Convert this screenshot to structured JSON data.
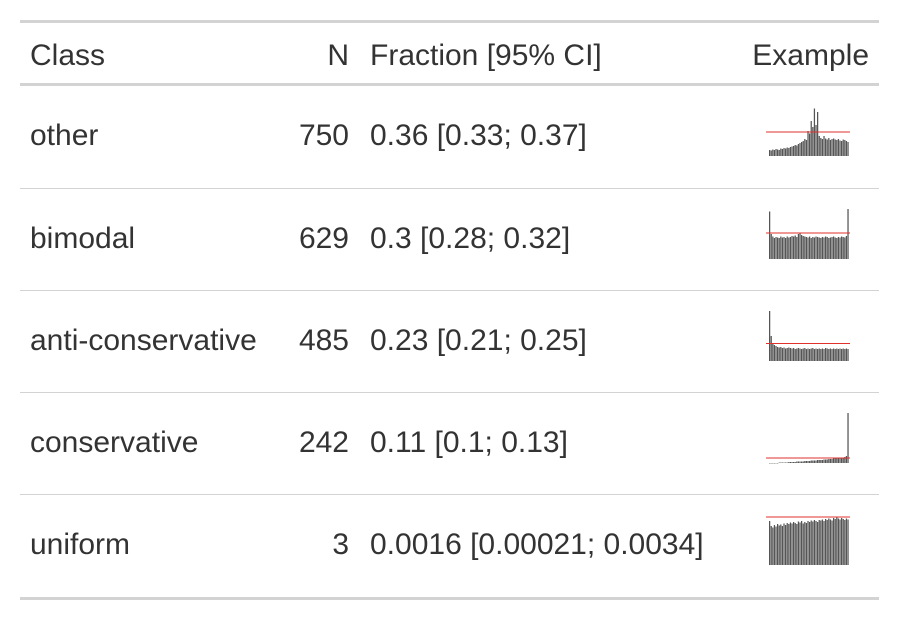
{
  "table": {
    "headers": {
      "class": "Class",
      "n": "N",
      "fraction": "Fraction [95% CI]",
      "example": "Example"
    },
    "rows": [
      {
        "class": "other",
        "n": "750",
        "fraction": "0.36 [0.33; 0.37]",
        "example": {
          "bars": [
            0.12,
            0.11,
            0.13,
            0.12,
            0.14,
            0.13,
            0.12,
            0.15,
            0.14,
            0.16,
            0.15,
            0.17,
            0.16,
            0.18,
            0.19,
            0.2,
            0.22,
            0.21,
            0.24,
            0.26,
            0.28,
            0.3,
            0.34,
            0.32,
            0.5,
            0.45,
            0.7,
            0.58,
            0.95,
            0.62,
            0.88,
            0.4,
            0.36,
            0.34,
            0.4,
            0.35,
            0.33,
            0.36,
            0.32,
            0.34,
            0.35,
            0.33,
            0.32,
            0.34,
            0.31,
            0.3,
            0.33,
            0.32,
            0.3,
            0.28
          ],
          "ref": 0.48
        }
      },
      {
        "class": "bimodal",
        "n": "629",
        "fraction": "0.3 [0.28; 0.32]",
        "example": {
          "bars": [
            0.95,
            0.5,
            0.45,
            0.42,
            0.44,
            0.43,
            0.42,
            0.45,
            0.43,
            0.44,
            0.42,
            0.45,
            0.43,
            0.44,
            0.46,
            0.45,
            0.47,
            0.44,
            0.5,
            0.52,
            0.48,
            0.46,
            0.45,
            0.44,
            0.43,
            0.45,
            0.42,
            0.44,
            0.43,
            0.45,
            0.44,
            0.43,
            0.42,
            0.44,
            0.43,
            0.45,
            0.44,
            0.42,
            0.43,
            0.44,
            0.45,
            0.43,
            0.42,
            0.44,
            0.43,
            0.45,
            0.44,
            0.43,
            0.46,
            1.0
          ],
          "ref": 0.52
        }
      },
      {
        "class": "anti-conservative",
        "n": "485",
        "fraction": "0.23 [0.21; 0.25]",
        "example": {
          "bars": [
            1.0,
            0.5,
            0.35,
            0.32,
            0.3,
            0.28,
            0.27,
            0.28,
            0.26,
            0.27,
            0.25,
            0.26,
            0.27,
            0.26,
            0.25,
            0.26,
            0.24,
            0.25,
            0.26,
            0.25,
            0.24,
            0.25,
            0.26,
            0.24,
            0.25,
            0.24,
            0.25,
            0.26,
            0.24,
            0.25,
            0.24,
            0.25,
            0.24,
            0.25,
            0.24,
            0.26,
            0.25,
            0.24,
            0.25,
            0.24,
            0.25,
            0.24,
            0.25,
            0.24,
            0.25,
            0.24,
            0.25,
            0.24,
            0.25,
            0.24
          ],
          "ref": 0.35
        }
      },
      {
        "class": "conservative",
        "n": "242",
        "fraction": "0.11 [0.1; 0.13]",
        "example": {
          "bars": [
            0.0,
            0.0,
            0.0,
            0.0,
            0.0,
            0.0,
            0.01,
            0.01,
            0.01,
            0.01,
            0.01,
            0.01,
            0.02,
            0.02,
            0.02,
            0.02,
            0.02,
            0.03,
            0.03,
            0.03,
            0.03,
            0.03,
            0.04,
            0.04,
            0.04,
            0.04,
            0.05,
            0.05,
            0.05,
            0.05,
            0.06,
            0.06,
            0.06,
            0.06,
            0.07,
            0.07,
            0.07,
            0.08,
            0.08,
            0.08,
            0.09,
            0.09,
            0.09,
            0.1,
            0.1,
            0.1,
            0.11,
            0.12,
            0.14,
            1.0
          ],
          "ref": 0.1
        }
      },
      {
        "class": "uniform",
        "n": "3",
        "fraction": "0.0016 [0.00021; 0.0034]",
        "example": {
          "bars": [
            0.88,
            0.78,
            0.75,
            0.8,
            0.77,
            0.82,
            0.79,
            0.81,
            0.78,
            0.83,
            0.8,
            0.84,
            0.82,
            0.85,
            0.83,
            0.86,
            0.84,
            0.82,
            0.87,
            0.85,
            0.88,
            0.83,
            0.86,
            0.84,
            0.88,
            0.86,
            0.89,
            0.87,
            0.9,
            0.88,
            0.86,
            0.9,
            0.89,
            0.91,
            0.88,
            0.92,
            0.9,
            0.93,
            0.91,
            0.89,
            0.94,
            0.92,
            0.95,
            0.93,
            0.91,
            0.94,
            0.92,
            0.9,
            0.93,
            0.91
          ],
          "ref": 0.96
        }
      }
    ]
  },
  "colors": {
    "text": "#333333",
    "rule": "#d3d3d3",
    "bars": "#555555",
    "reference_line": "#e0312b"
  }
}
